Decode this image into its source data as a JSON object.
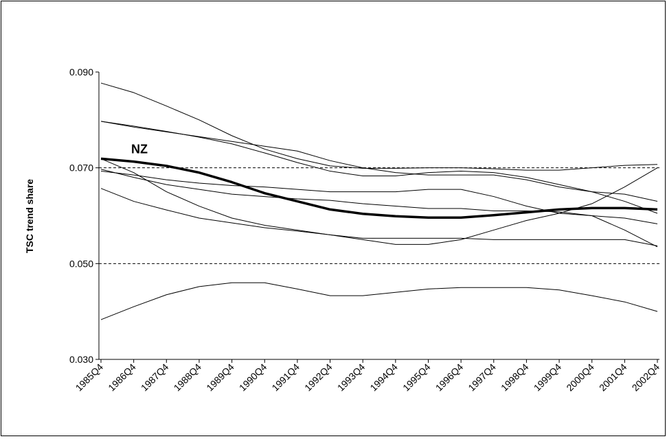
{
  "chart_data": {
    "type": "line",
    "y_label": "TSC trend share",
    "categories": [
      "1985Q4",
      "1986Q4",
      "1987Q4",
      "1988Q4",
      "1989Q4",
      "1990Q4",
      "1991Q4",
      "1992Q4",
      "1993Q4",
      "1994Q4",
      "1995Q4",
      "1996Q4",
      "1997Q4",
      "1998Q4",
      "1999Q4",
      "2000Q4",
      "2001Q4",
      "2002Q4"
    ],
    "ylim": [
      0.03,
      0.09
    ],
    "yticks": [
      {
        "value": 0.03,
        "label": "0.030"
      },
      {
        "value": 0.05,
        "label": "0.050"
      },
      {
        "value": 0.07,
        "label": "0.070"
      },
      {
        "value": 0.09,
        "label": "0.090"
      }
    ],
    "grid": true,
    "series": [
      {
        "color": "#000000",
        "values": [
          0.0877,
          0.0857,
          0.0829,
          0.08,
          0.0767,
          0.0739,
          0.0719,
          0.0704,
          0.0699,
          0.0699,
          0.07,
          0.07,
          0.0698,
          0.0695,
          0.0695,
          0.07,
          0.0705,
          0.0707
        ]
      },
      {
        "color": "#000000",
        "values": [
          0.0797,
          0.0787,
          0.0776,
          0.0764,
          0.075,
          0.0731,
          0.0711,
          0.0693,
          0.0683,
          0.0683,
          0.069,
          0.0693,
          0.069,
          0.068,
          0.0665,
          0.065,
          0.063,
          0.0605
        ]
      },
      {
        "color": "#000000",
        "values": [
          0.0797,
          0.0785,
          0.0775,
          0.0765,
          0.0755,
          0.0745,
          0.0735,
          0.0715,
          0.07,
          0.069,
          0.0685,
          0.0685,
          0.0685,
          0.0675,
          0.066,
          0.065,
          0.0645,
          0.063
        ]
      },
      {
        "color": "#000000",
        "values": [
          0.0719,
          0.069,
          0.065,
          0.062,
          0.0595,
          0.058,
          0.057,
          0.056,
          0.055,
          0.054,
          0.054,
          0.055,
          0.057,
          0.059,
          0.0605,
          0.0625,
          0.066,
          0.07
        ]
      },
      {
        "color": "#000000",
        "values": [
          0.0697,
          0.068,
          0.0665,
          0.0655,
          0.0645,
          0.064,
          0.0635,
          0.0632,
          0.0625,
          0.062,
          0.0615,
          0.0615,
          0.061,
          0.061,
          0.0608,
          0.06,
          0.0595,
          0.0583
        ]
      },
      {
        "color": "#000000",
        "values": [
          0.0693,
          0.0685,
          0.0675,
          0.0668,
          0.0663,
          0.066,
          0.0655,
          0.065,
          0.065,
          0.065,
          0.0655,
          0.0655,
          0.064,
          0.062,
          0.0605,
          0.06,
          0.057,
          0.0535
        ]
      },
      {
        "color": "#000000",
        "values": [
          0.0657,
          0.063,
          0.0612,
          0.0595,
          0.0585,
          0.0575,
          0.0568,
          0.056,
          0.0553,
          0.0553,
          0.0553,
          0.0553,
          0.055,
          0.055,
          0.055,
          0.055,
          0.055,
          0.0537
        ]
      },
      {
        "color": "#000000",
        "values": [
          0.0383,
          0.041,
          0.0435,
          0.0452,
          0.046,
          0.046,
          0.0447,
          0.0433,
          0.0433,
          0.044,
          0.0447,
          0.045,
          0.045,
          0.045,
          0.0445,
          0.0433,
          0.042,
          0.04
        ]
      },
      {
        "name": "NZ",
        "color": "#000000",
        "bold": true,
        "values": [
          0.0719,
          0.0713,
          0.0704,
          0.069,
          0.067,
          0.0647,
          0.063,
          0.0613,
          0.0604,
          0.0599,
          0.0596,
          0.0596,
          0.0601,
          0.0607,
          0.0613,
          0.0616,
          0.0616,
          0.0613
        ]
      }
    ]
  }
}
